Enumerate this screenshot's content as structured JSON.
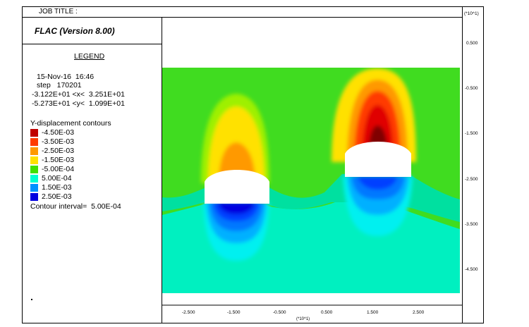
{
  "header": {
    "job_title_label": "JOB TITLE :"
  },
  "software": {
    "name": "FLAC (Version 8.00)"
  },
  "legend": {
    "title": "LEGEND",
    "date": "15-Nov-16  16:46",
    "step": "step   170201",
    "x_range": "-3.122E+01 <x<  3.251E+01",
    "y_range": "-5.273E+01 <y<  1.099E+01",
    "contour_title": "Y-displacement contours",
    "contour_interval": "Contour interval=  5.00E-04",
    "contours": [
      {
        "label": "-4.50E-03",
        "color": "#c00000"
      },
      {
        "label": "-3.50E-03",
        "color": "#ff3b00"
      },
      {
        "label": "-2.50E-03",
        "color": "#ff9900"
      },
      {
        "label": "-1.50E-03",
        "color": "#ffe100"
      },
      {
        "label": "-5.00E-04",
        "color": "#40e000"
      },
      {
        "label": "5.00E-04",
        "color": "#00ffd0"
      },
      {
        "label": "1.50E-03",
        "color": "#0091ff"
      },
      {
        "label": "2.50E-03",
        "color": "#0000e0"
      }
    ]
  },
  "axes": {
    "y_multiplier": "(*10^1)",
    "x_multiplier": "(*10^1)",
    "y_ticks": [
      "0.500",
      "-0.500",
      "-1.500",
      "-2.500",
      "-3.500",
      "-4.500"
    ],
    "x_ticks": [
      "-2.500",
      "-1.500",
      "-0.500",
      "0.500",
      "1.500",
      "2.500"
    ]
  }
}
